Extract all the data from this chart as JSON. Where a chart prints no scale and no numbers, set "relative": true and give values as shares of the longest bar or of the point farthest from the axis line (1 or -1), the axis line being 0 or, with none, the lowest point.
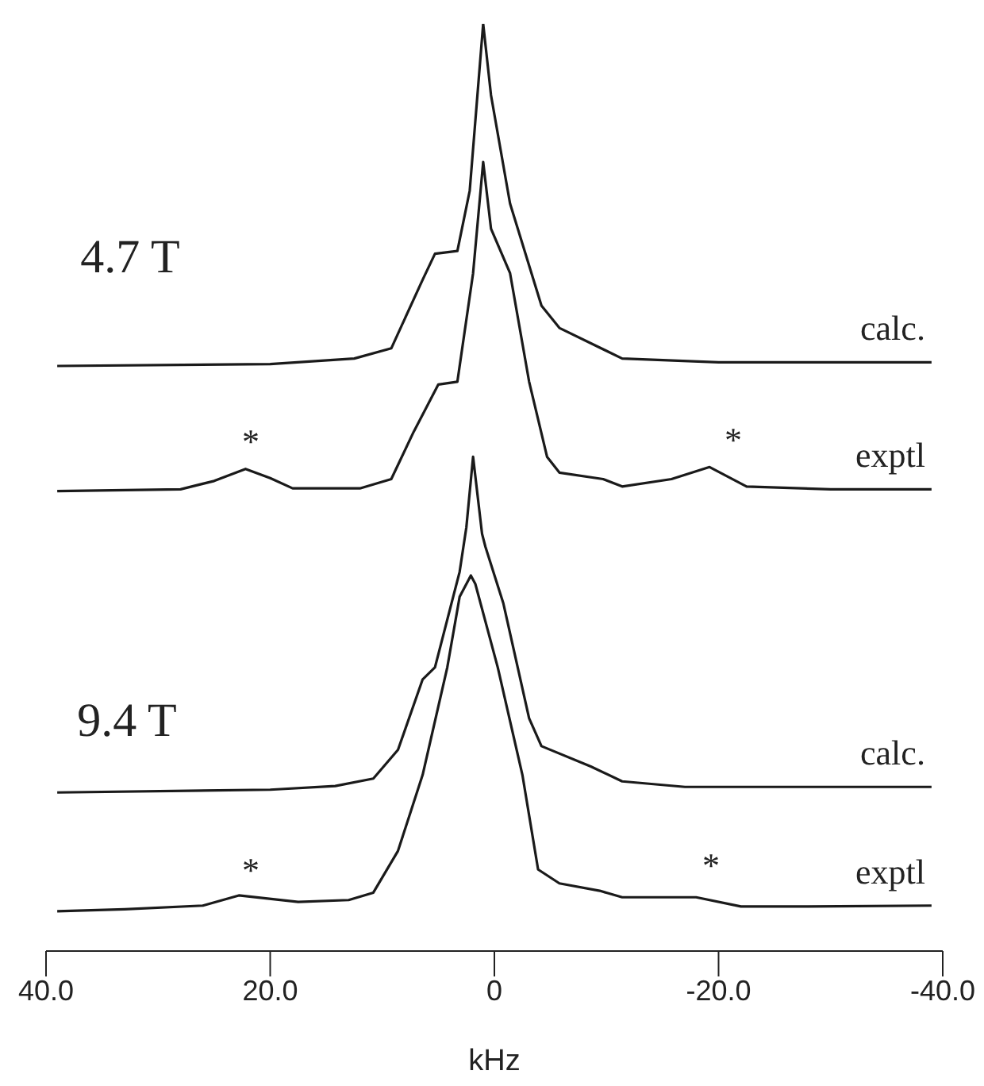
{
  "chart_data": {
    "type": "line",
    "relative": true,
    "xlabel": "kHz",
    "xlim": [
      40,
      -40
    ],
    "xticks": [
      {
        "value": 40,
        "label": "40.0"
      },
      {
        "value": 20,
        "label": "20.0"
      },
      0,
      {
        "value": -20,
        "label": "-20.0"
      },
      {
        "value": -40,
        "label": "-40.0"
      }
    ],
    "grid": false,
    "legend": false,
    "series": [
      {
        "name": "calc.",
        "color": "#1a1a1a",
        "x": [
          39,
          20,
          12.5,
          9.2,
          6.4,
          5.3,
          3.3,
          2.2,
          1.0,
          0.3,
          -1.4,
          -4.2,
          -5.8,
          -9.2,
          -11.4,
          -20,
          -39
        ],
        "values": [
          0.631,
          0.633,
          0.639,
          0.65,
          0.724,
          0.752,
          0.755,
          0.82,
          1.0,
          0.923,
          0.806,
          0.696,
          0.672,
          0.652,
          0.639,
          0.635,
          0.635
        ]
      },
      {
        "name": "exptl",
        "color": "#1a1a1a",
        "x": [
          39,
          28,
          25,
          22.2,
          20,
          18,
          12,
          9.2,
          7.2,
          5.0,
          3.3,
          1.9,
          1.0,
          0.3,
          -1.4,
          -3.1,
          -4.7,
          -5.8,
          -9.7,
          -11.4,
          -15.8,
          -19.2,
          -22.5,
          -30,
          -39
        ],
        "values": [
          0.496,
          0.498,
          0.507,
          0.52,
          0.51,
          0.499,
          0.499,
          0.509,
          0.56,
          0.611,
          0.614,
          0.731,
          0.851,
          0.779,
          0.731,
          0.614,
          0.533,
          0.516,
          0.509,
          0.501,
          0.509,
          0.522,
          0.501,
          0.498,
          0.498
        ]
      },
      {
        "name": "calc.",
        "color": "#1a1a1a",
        "x": [
          39,
          20,
          14.2,
          10.8,
          8.6,
          6.4,
          5.3,
          3.1,
          2.5,
          1.9,
          1.1,
          0.8,
          -0.8,
          -3.1,
          -4.2,
          -8.6,
          -11.4,
          -17,
          -39
        ],
        "values": [
          0.171,
          0.174,
          0.178,
          0.186,
          0.217,
          0.293,
          0.306,
          0.409,
          0.457,
          0.533,
          0.45,
          0.436,
          0.375,
          0.251,
          0.221,
          0.199,
          0.183,
          0.177,
          0.177
        ]
      },
      {
        "name": "exptl",
        "color": "#1a1a1a",
        "x": [
          39,
          33,
          26,
          22.8,
          17.5,
          13,
          10.8,
          8.6,
          6.4,
          4.2,
          3.1,
          2.1,
          1.7,
          -0.3,
          -2.5,
          -3.9,
          -5.8,
          -9.4,
          -11.4,
          -18,
          -22,
          -28,
          -39
        ],
        "values": [
          0.043,
          0.045,
          0.049,
          0.06,
          0.053,
          0.055,
          0.063,
          0.108,
          0.19,
          0.306,
          0.382,
          0.405,
          0.396,
          0.306,
          0.19,
          0.088,
          0.073,
          0.065,
          0.058,
          0.058,
          0.048,
          0.048,
          0.049
        ]
      }
    ],
    "annotations": [
      "4.7 T",
      "9.4 T",
      "*",
      "*",
      "*",
      "*"
    ]
  }
}
